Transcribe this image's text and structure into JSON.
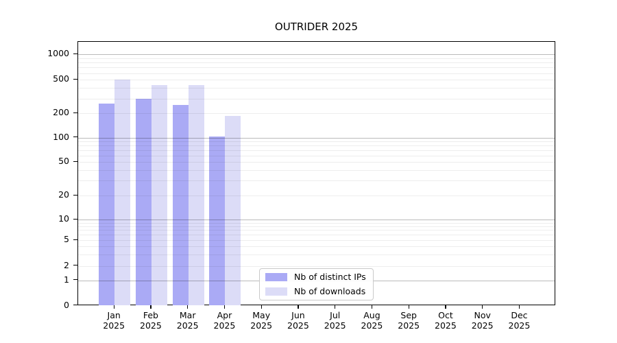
{
  "chart_data": {
    "type": "bar",
    "title": "OUTRIDER 2025",
    "categories": [
      "Jan 2025",
      "Feb 2025",
      "Mar 2025",
      "Apr 2025",
      "May 2025",
      "Jun 2025",
      "Jul 2025",
      "Aug 2025",
      "Sep 2025",
      "Oct 2025",
      "Nov 2025",
      "Dec 2025"
    ],
    "series": [
      {
        "name": "Nb of distinct IPs",
        "color": "#aaaaf5",
        "values": [
          260,
          300,
          250,
          102,
          0,
          0,
          0,
          0,
          0,
          0,
          0,
          0
        ]
      },
      {
        "name": "Nb of downloads",
        "color": "#dcdcf7",
        "values": [
          500,
          435,
          430,
          185,
          0,
          0,
          0,
          0,
          0,
          0,
          0,
          0
        ]
      }
    ],
    "yticks": [
      0,
      1,
      2,
      5,
      10,
      20,
      50,
      100,
      200,
      500,
      1000
    ],
    "yscale": "log-like with linear 0-1 baseline",
    "ylim": [
      0,
      1400
    ],
    "xlabel": "",
    "ylabel": "",
    "grid": true,
    "legend_position": "lower center"
  }
}
